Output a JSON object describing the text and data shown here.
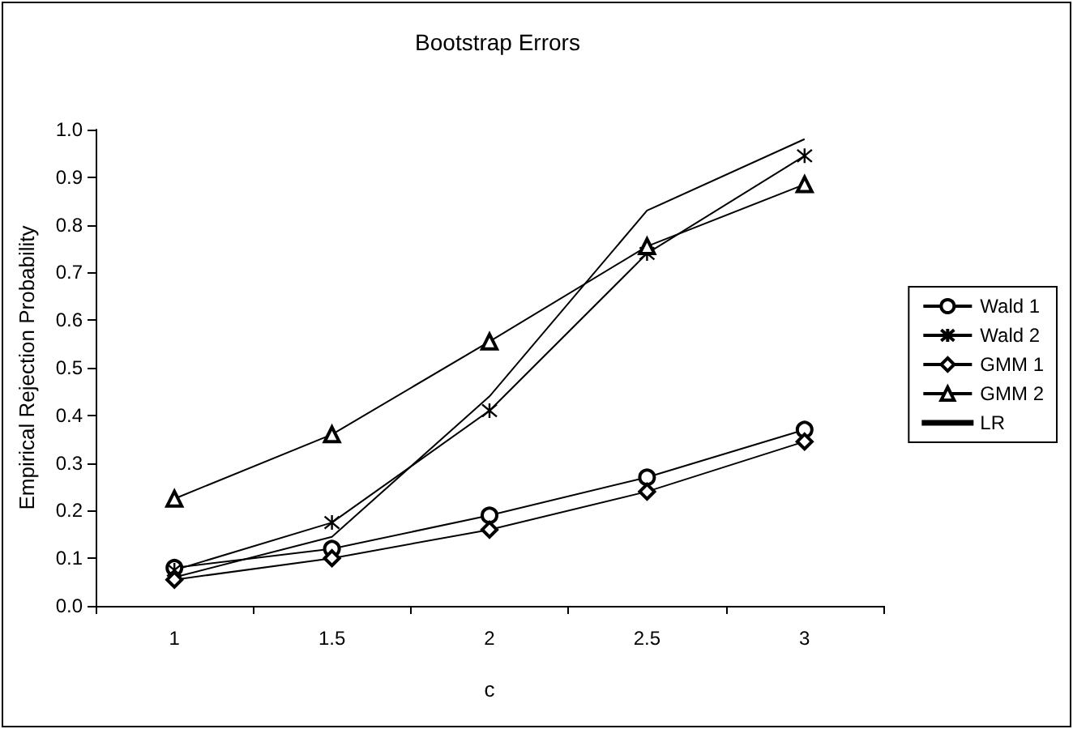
{
  "chart_data": {
    "type": "line",
    "title": "Bootstrap Errors",
    "xlabel": "c",
    "ylabel": "Empirical Rejection Probability",
    "categories": [
      "1",
      "1.5",
      "2",
      "2.5",
      "3"
    ],
    "series": [
      {
        "name": "Wald 1",
        "color": "#000000",
        "marker": "circle",
        "values": [
          0.08,
          0.12,
          0.19,
          0.27,
          0.37
        ]
      },
      {
        "name": "Wald 2",
        "color": "#000000",
        "marker": "cross",
        "values": [
          0.075,
          0.175,
          0.41,
          0.74,
          0.945
        ]
      },
      {
        "name": "GMM 1",
        "color": "#000000",
        "marker": "diamond",
        "values": [
          0.055,
          0.1,
          0.16,
          0.24,
          0.345
        ]
      },
      {
        "name": "GMM 2",
        "color": "#000000",
        "marker": "triangle",
        "values": [
          0.225,
          0.36,
          0.555,
          0.755,
          0.885
        ]
      },
      {
        "name": "LR",
        "color": "#000000",
        "marker": "none",
        "values": [
          0.06,
          0.145,
          0.44,
          0.83,
          0.98
        ]
      }
    ],
    "ylim": [
      0,
      1
    ],
    "yticks": [
      {
        "value": 0,
        "label": "0.0"
      },
      0.1,
      0.2,
      0.3,
      0.4,
      0.5,
      0.6,
      0.7,
      0.8,
      0.9,
      {
        "value": 1,
        "label": "1.0"
      }
    ],
    "grid": false,
    "legend": "right",
    "line_style": "solid"
  }
}
